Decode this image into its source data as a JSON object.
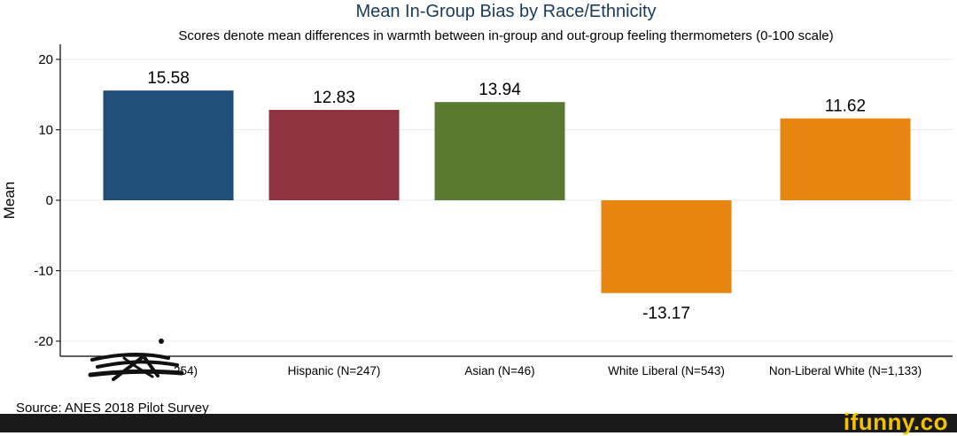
{
  "chart_data": {
    "type": "bar",
    "title": "Mean In-Group Bias by Race/Ethnicity",
    "subtitle": "Scores denote mean differences in warmth between in-group and out-group feeling thermometers (0-100 scale)",
    "ylabel": "Mean",
    "xlabel": "",
    "ylim": [
      -22,
      20
    ],
    "yticks": [
      20,
      10,
      0,
      -10,
      -20
    ],
    "ytick_labels": [
      "20",
      "10",
      "0",
      "-10",
      "-20"
    ],
    "grid": true,
    "categories": [
      "Black (N=254)",
      "Hispanic (N=247)",
      "Asian (N=46)",
      "White Liberal (N=543)",
      "Non-Liberal White (N=1,133)"
    ],
    "visible_category_labels": [
      "254)",
      "Hispanic (N=247)",
      "Asian (N=46)",
      "White Liberal (N=543)",
      "Non-Liberal White (N=1,133)"
    ],
    "values": [
      15.58,
      12.83,
      13.94,
      -13.17,
      11.62
    ],
    "value_labels": [
      "15.58",
      "12.83",
      "13.94",
      "-13.17",
      "11.62"
    ],
    "colors": [
      "#1f4e79",
      "#8f3340",
      "#5a7a32",
      "#e68510",
      "#e68510"
    ]
  },
  "source": "Source: ANES 2018 Pilot Survey",
  "watermark": "ifunny.co",
  "scribble_color": "#111111"
}
